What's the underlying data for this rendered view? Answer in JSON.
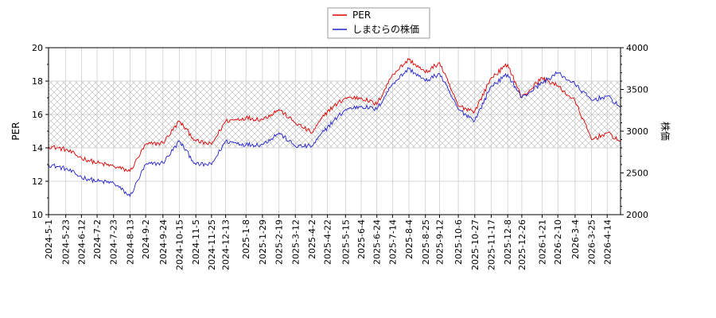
{
  "chart_data": {
    "type": "line",
    "legend": {
      "position": "top-center",
      "items": [
        {
          "label": "PER",
          "color": "#dd0000"
        },
        {
          "label": "しまむらの株価",
          "color": "#2222cc"
        }
      ]
    },
    "left_axis": {
      "label": "PER",
      "ylim": [
        10,
        20
      ],
      "ticks": [
        "10",
        "12",
        "14",
        "16",
        "18",
        "20"
      ]
    },
    "right_axis": {
      "label": "株価",
      "ylim": [
        2000,
        4000
      ],
      "ticks": [
        "2000",
        "2500",
        "3000",
        "3500",
        "4000"
      ]
    },
    "shaded_band": {
      "axis": "left",
      "from": 14,
      "to": 18,
      "pattern": "crosshatch"
    },
    "grid": true,
    "x_ticks": [
      "2024-5-1",
      "2024-5-23",
      "2024-6-12",
      "2024-7-2",
      "2024-7-23",
      "2024-8-13",
      "2024-9-2",
      "2024-9-24",
      "2024-10-15",
      "2024-11-5",
      "2024-11-25",
      "2024-12-13",
      "2025-1-8",
      "2025-1-29",
      "2025-2-19",
      "2025-3-12",
      "2025-4-2",
      "2025-4-22",
      "2025-5-15",
      "2025-6-4",
      "2025-6-24",
      "2025-7-14",
      "2025-8-4",
      "2025-8-25",
      "2025-9-12",
      "2025-10-6",
      "2025-10-27",
      "2025-11-17",
      "2025-12-8",
      "2025-12-26",
      "2026-1-21",
      "2026-2-10",
      "2026-3-4",
      "2026-3-25",
      "2026-4-14"
    ],
    "x_end": "2026-5-1",
    "series": [
      {
        "name": "PER",
        "axis": "left",
        "color": "#dd0000",
        "points": [
          [
            "2024-5-1",
            14.1
          ],
          [
            "2024-5-23",
            13.9
          ],
          [
            "2024-6-12",
            13.4
          ],
          [
            "2024-7-2",
            13.1
          ],
          [
            "2024-7-23",
            12.9
          ],
          [
            "2024-8-13",
            12.6
          ],
          [
            "2024-9-2",
            14.2
          ],
          [
            "2024-9-24",
            14.3
          ],
          [
            "2024-10-15",
            15.6
          ],
          [
            "2024-11-5",
            14.4
          ],
          [
            "2024-11-25",
            14.2
          ],
          [
            "2024-12-13",
            15.6
          ],
          [
            "2025-1-8",
            15.8
          ],
          [
            "2025-1-29",
            15.7
          ],
          [
            "2025-2-19",
            16.3
          ],
          [
            "2025-3-12",
            15.5
          ],
          [
            "2025-4-2",
            14.9
          ],
          [
            "2025-4-22",
            16.2
          ],
          [
            "2025-5-15",
            17.0
          ],
          [
            "2025-6-4",
            17.0
          ],
          [
            "2025-6-24",
            16.6
          ],
          [
            "2025-7-14",
            18.4
          ],
          [
            "2025-8-4",
            19.3
          ],
          [
            "2025-8-25",
            18.5
          ],
          [
            "2025-9-12",
            19.1
          ],
          [
            "2025-10-6",
            16.5
          ],
          [
            "2025-10-27",
            16.2
          ],
          [
            "2025-11-17",
            18.2
          ],
          [
            "2025-12-8",
            19.0
          ],
          [
            "2025-12-26",
            17.0
          ],
          [
            "2026-1-21",
            18.2
          ],
          [
            "2026-2-10",
            17.7
          ],
          [
            "2026-3-4",
            16.8
          ],
          [
            "2026-3-25",
            14.5
          ],
          [
            "2026-4-14",
            14.9
          ],
          [
            "2026-5-1",
            14.4
          ]
        ]
      },
      {
        "name": "しまむらの株価",
        "axis": "right",
        "color": "#2222cc",
        "points": [
          [
            "2024-5-1",
            2600
          ],
          [
            "2024-5-23",
            2550
          ],
          [
            "2024-6-12",
            2450
          ],
          [
            "2024-7-2",
            2400
          ],
          [
            "2024-7-23",
            2380
          ],
          [
            "2024-8-13",
            2220
          ],
          [
            "2024-9-2",
            2600
          ],
          [
            "2024-9-24",
            2620
          ],
          [
            "2024-10-15",
            2880
          ],
          [
            "2024-11-5",
            2600
          ],
          [
            "2024-11-25",
            2600
          ],
          [
            "2024-12-13",
            2880
          ],
          [
            "2025-1-8",
            2840
          ],
          [
            "2025-1-29",
            2840
          ],
          [
            "2025-2-19",
            2980
          ],
          [
            "2025-3-12",
            2820
          ],
          [
            "2025-4-2",
            2820
          ],
          [
            "2025-4-22",
            3050
          ],
          [
            "2025-5-15",
            3260
          ],
          [
            "2025-6-4",
            3300
          ],
          [
            "2025-6-24",
            3260
          ],
          [
            "2025-7-14",
            3570
          ],
          [
            "2025-8-4",
            3750
          ],
          [
            "2025-8-25",
            3600
          ],
          [
            "2025-9-12",
            3690
          ],
          [
            "2025-10-6",
            3260
          ],
          [
            "2025-10-27",
            3130
          ],
          [
            "2025-11-17",
            3540
          ],
          [
            "2025-12-8",
            3680
          ],
          [
            "2025-12-26",
            3400
          ],
          [
            "2026-1-21",
            3580
          ],
          [
            "2026-2-10",
            3700
          ],
          [
            "2026-3-4",
            3560
          ],
          [
            "2026-3-25",
            3370
          ],
          [
            "2026-4-14",
            3420
          ],
          [
            "2026-5-1",
            3290
          ]
        ]
      }
    ]
  }
}
